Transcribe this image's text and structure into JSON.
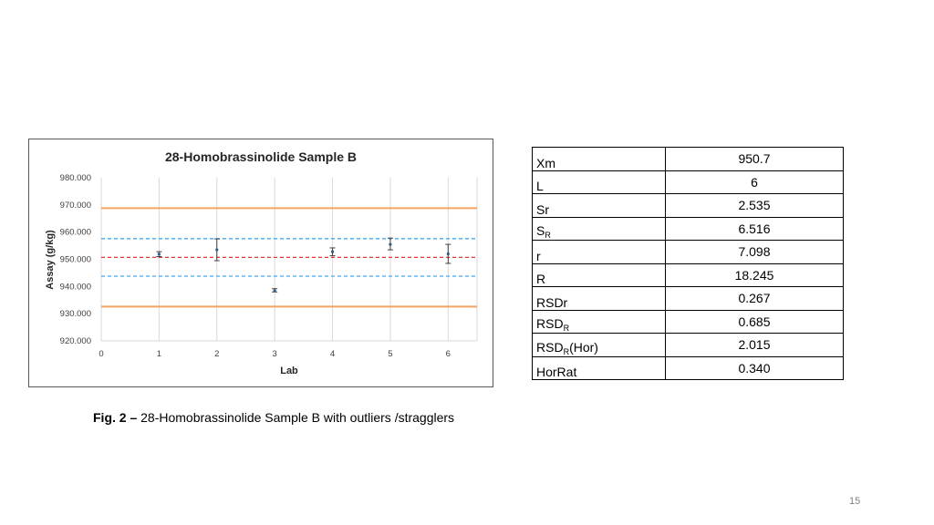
{
  "chart_data": {
    "type": "scatter",
    "title": "28-Homobrassinolide Sample B",
    "xlabel": "Lab",
    "ylabel": "Assay (g/kg)",
    "xlim": [
      0,
      6.5
    ],
    "ylim": [
      920,
      980
    ],
    "x_ticks": [
      "0",
      "1",
      "2",
      "3",
      "4",
      "5",
      "6"
    ],
    "y_ticks": [
      "920.000",
      "930.000",
      "940.000",
      "950.000",
      "960.000",
      "970.000",
      "980.000"
    ],
    "grid": "vertical",
    "points": [
      {
        "x": 1,
        "y": 951.9,
        "err_low": 951.0,
        "err_high": 952.8
      },
      {
        "x": 2,
        "y": 953.5,
        "err_low": 949.5,
        "err_high": 957.5
      },
      {
        "x": 3,
        "y": 938.5,
        "err_low": 938.0,
        "err_high": 939.2
      },
      {
        "x": 4,
        "y": 952.8,
        "err_low": 951.3,
        "err_high": 954.2
      },
      {
        "x": 5,
        "y": 955.5,
        "err_low": 953.5,
        "err_high": 957.8
      },
      {
        "x": 6,
        "y": 952.0,
        "err_low": 948.5,
        "err_high": 955.5
      }
    ],
    "reference_lines": [
      {
        "y": 968.8,
        "color": "#f4a460",
        "style": "solid"
      },
      {
        "y": 957.6,
        "color": "#3fa9f5",
        "style": "dashed"
      },
      {
        "y": 950.7,
        "color": "#e53935",
        "style": "dashed"
      },
      {
        "y": 943.8,
        "color": "#3fa9f5",
        "style": "dashed"
      },
      {
        "y": 932.6,
        "color": "#f4a460",
        "style": "solid"
      }
    ],
    "point_color": "#2e5f8a"
  },
  "stats": [
    {
      "label": "Xm",
      "sub": "",
      "suffix": "",
      "value": "950.7"
    },
    {
      "label": "L",
      "sub": "",
      "suffix": "",
      "value": "6"
    },
    {
      "label": "Sr",
      "sub": "",
      "suffix": "",
      "value": "2.535"
    },
    {
      "label": "S",
      "sub": "R",
      "suffix": "",
      "value": "6.516"
    },
    {
      "label": "r",
      "sub": "",
      "suffix": "",
      "value": "7.098"
    },
    {
      "label": "R",
      "sub": "",
      "suffix": "",
      "value": "18.245"
    },
    {
      "label": "RSDr",
      "sub": "",
      "suffix": "",
      "value": "0.267"
    },
    {
      "label": "RSD",
      "sub": "R",
      "suffix": "",
      "value": "0.685"
    },
    {
      "label": "RSD",
      "sub": "R",
      "suffix": "(Hor)",
      "value": "2.015"
    },
    {
      "label": "HorRat",
      "sub": "",
      "suffix": "",
      "value": "0.340"
    }
  ],
  "caption": {
    "prefix": "Fig. 2 –",
    "text": " 28-Homobrassinolide Sample B with outliers /stragglers"
  },
  "page_number": "15"
}
